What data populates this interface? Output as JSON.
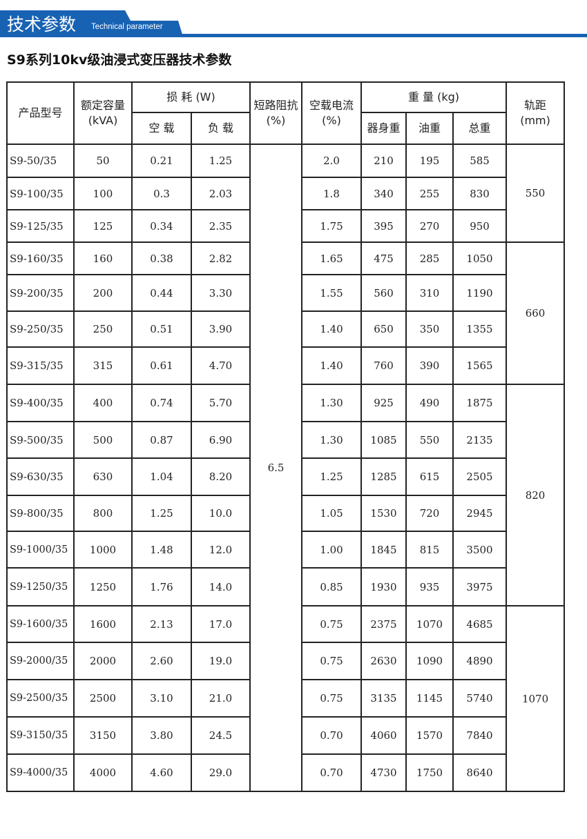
{
  "banner": {
    "title_cn": "技术参数",
    "title_en": "Technical parameter",
    "color": "#1862b3"
  },
  "title": "S9系列10kv级油浸式变压器技术参数",
  "table": {
    "headers": {
      "model": "产品型号",
      "capacity": "额定容量",
      "capacity_unit": "(kVA)",
      "loss": "损 耗 (W)",
      "loss_noload": "空 载",
      "loss_load": "负 载",
      "impedance": "短路阻抗",
      "impedance_unit": "(%)",
      "noload_current": "空载电流",
      "noload_current_unit": "(%)",
      "weight": "重 量 (kg)",
      "weight_body": "器身重",
      "weight_oil": "油重",
      "weight_total": "总重",
      "gauge": "轨距",
      "gauge_unit": "(mm)"
    },
    "impedance_value": "6.5",
    "gauge_groups": [
      {
        "value": "550",
        "rows": 3
      },
      {
        "value": "660",
        "rows": 4
      },
      {
        "value": "820",
        "rows": 6
      },
      {
        "value": "1070",
        "rows": 5
      }
    ],
    "rows": [
      [
        "S9-50/35",
        "50",
        "0.21",
        "1.25",
        "2.0",
        "210",
        "195",
        "585"
      ],
      [
        "S9-100/35",
        "100",
        "0.3",
        "2.03",
        "1.8",
        "340",
        "255",
        "830"
      ],
      [
        "S9-125/35",
        "125",
        "0.34",
        "2.35",
        "1.75",
        "395",
        "270",
        "950"
      ],
      [
        "S9-160/35",
        "160",
        "0.38",
        "2.82",
        "1.65",
        "475",
        "285",
        "1050"
      ],
      [
        "S9-200/35",
        "200",
        "0.44",
        "3.30",
        "1.55",
        "560",
        "310",
        "1190"
      ],
      [
        "S9-250/35",
        "250",
        "0.51",
        "3.90",
        "1.40",
        "650",
        "350",
        "1355"
      ],
      [
        "S9-315/35",
        "315",
        "0.61",
        "4.70",
        "1.40",
        "760",
        "390",
        "1565"
      ],
      [
        "S9-400/35",
        "400",
        "0.74",
        "5.70",
        "1.30",
        "925",
        "490",
        "1875"
      ],
      [
        "S9-500/35",
        "500",
        "0.87",
        "6.90",
        "1.30",
        "1085",
        "550",
        "2135"
      ],
      [
        "S9-630/35",
        "630",
        "1.04",
        "8.20",
        "1.25",
        "1285",
        "615",
        "2505"
      ],
      [
        "S9-800/35",
        "800",
        "1.25",
        "10.0",
        "1.05",
        "1530",
        "720",
        "2945"
      ],
      [
        "S9-1000/35",
        "1000",
        "1.48",
        "12.0",
        "1.00",
        "1845",
        "815",
        "3500"
      ],
      [
        "S9-1250/35",
        "1250",
        "1.76",
        "14.0",
        "0.85",
        "1930",
        "935",
        "3975"
      ],
      [
        "S9-1600/35",
        "1600",
        "2.13",
        "17.0",
        "0.75",
        "2375",
        "1070",
        "4685"
      ],
      [
        "S9-2000/35",
        "2000",
        "2.60",
        "19.0",
        "0.75",
        "2630",
        "1090",
        "4890"
      ],
      [
        "S9-2500/35",
        "2500",
        "3.10",
        "21.0",
        "0.75",
        "3135",
        "1145",
        "5740"
      ],
      [
        "S9-3150/35",
        "3150",
        "3.80",
        "24.5",
        "0.70",
        "4060",
        "1570",
        "7840"
      ],
      [
        "S9-4000/35",
        "4000",
        "4.60",
        "29.0",
        "0.70",
        "4730",
        "1750",
        "8640"
      ]
    ]
  }
}
